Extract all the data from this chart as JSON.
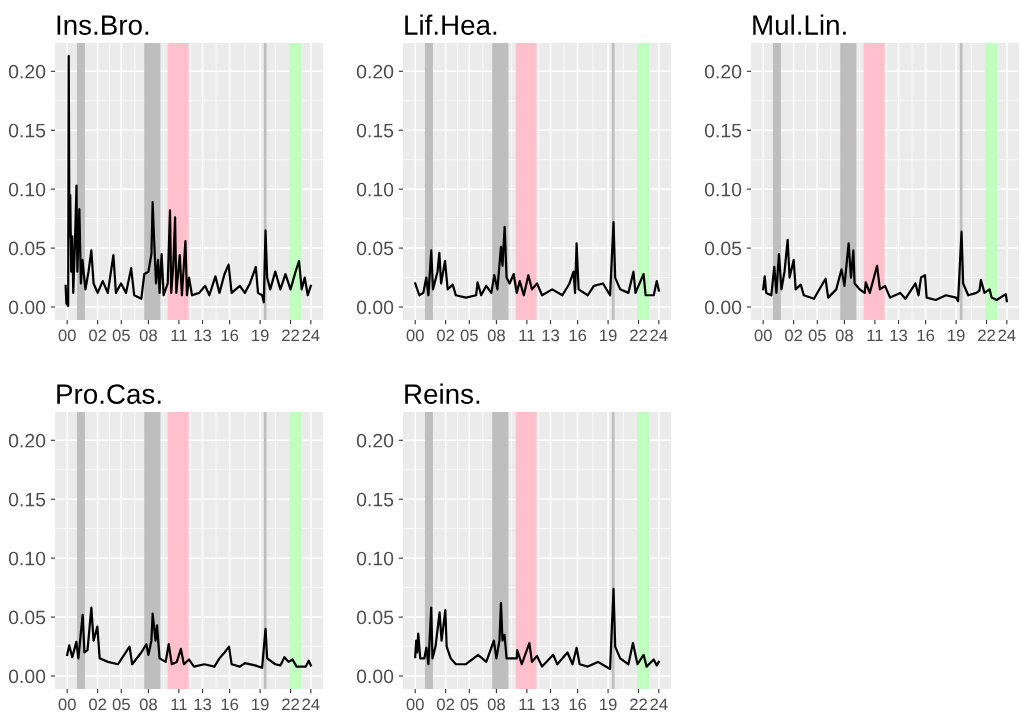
{
  "chart_data": [
    {
      "type": "line",
      "title": "Ins.Bro.",
      "grid": true,
      "xlim": [
        "1998-10-19",
        "2025-03-14"
      ],
      "ylim": [
        -0.011,
        0.224
      ],
      "xticks": [
        {
          "value": "2000-01-01",
          "label": "00"
        },
        {
          "value": "2002-12-31",
          "label": "02"
        },
        {
          "value": "2005-05-01",
          "label": "05"
        },
        {
          "value": "2008-01-01",
          "label": "08"
        },
        {
          "value": "2011-01-01",
          "label": "11"
        },
        {
          "value": "2013-05-01",
          "label": "13"
        },
        {
          "value": "2016-01-01",
          "label": "16"
        },
        {
          "value": "2019-01-01",
          "label": "19"
        },
        {
          "value": "2022-01-01",
          "label": "22"
        },
        {
          "value": "2024-01-01",
          "label": "24"
        }
      ],
      "yticks": [
        {
          "value": 0,
          "label": "0.00"
        },
        {
          "value": 0.05,
          "label": "0.05"
        },
        {
          "value": 0.1,
          "label": "0.10"
        },
        {
          "value": 0.15,
          "label": "0.15"
        },
        {
          "value": 0.2,
          "label": "0.20"
        }
      ],
      "bands": [
        {
          "axis": "x",
          "from": "2000-12-17",
          "to": "2001-10-01",
          "color": "#bebebe"
        },
        {
          "axis": "x",
          "from": "2007-08-04",
          "to": "2009-03-05",
          "color": "#bebebe"
        },
        {
          "axis": "x",
          "from": "2009-11-25",
          "to": "2011-12-13",
          "color": "#ffc0cb"
        },
        {
          "axis": "x",
          "from": "2019-05-15",
          "to": "2019-08-22",
          "color": "#bebebe"
        },
        {
          "axis": "x",
          "from": "2021-11-06",
          "to": "2023-01-15",
          "color": "#c1ffc1"
        }
      ],
      "series": [
        {
          "color": "#000000",
          "x": [
            "1999-11-06",
            "1999-12-02",
            "2000-02-05",
            "2000-02-24",
            "2000-03-21",
            "2000-04-19",
            "2000-05-25",
            "2000-07-01",
            "2000-08-06",
            "2000-10-01",
            "2000-12-01",
            "2001-01-01",
            "2001-03-14",
            "2001-05-08",
            "2001-07-02",
            "2001-10-19",
            "2002-02-06",
            "2002-05-19",
            "2002-08-07",
            "2003-01-01",
            "2003-07-02",
            "2004-01-01",
            "2004-07-20",
            "2004-10-19",
            "2005-04-20",
            "2005-10-19",
            "2006-04-20",
            "2006-08-07",
            "2007-04-20",
            "2007-08-07",
            "2008-01-01",
            "2008-04-19",
            "2008-06-01",
            "2008-07-19",
            "2008-10-01",
            "2008-12-13",
            "2009-02-06",
            "2009-04-20",
            "2009-07-02",
            "2009-11-25",
            "2010-02-16",
            "2010-04-01",
            "2010-06-13",
            "2010-08-18",
            "2010-10-01",
            "2011-02-02",
            "2011-04-20",
            "2011-08-25",
            "2011-10-19",
            "2012-01-01",
            "2012-04-19",
            "2013-01-01",
            "2013-08-07",
            "2014-01-01",
            "2014-08-07",
            "2015-01-01",
            "2015-07-02",
            "2015-11-25",
            "2016-03-13",
            "2017-01-01",
            "2017-07-02",
            "2018-01-01",
            "2018-07-31",
            "2018-10-19",
            "2019-03-14",
            "2019-05-15",
            "2019-07-16",
            "2019-09-13",
            "2020-01-01",
            "2020-07-01",
            "2021-01-01",
            "2021-07-02",
            "2022-01-01",
            "2022-07-02",
            "2022-11-03",
            "2023-02-06",
            "2023-05-27",
            "2023-09-13",
            "2024-01-01"
          ],
          "values": [
            0.018,
            0.003,
            0.001,
            0.213,
            0.06,
            0.095,
            0.03,
            0.06,
            0.012,
            0.05,
            0.103,
            0.03,
            0.083,
            0.02,
            0.04,
            0.015,
            0.03,
            0.048,
            0.02,
            0.012,
            0.022,
            0.012,
            0.044,
            0.012,
            0.02,
            0.012,
            0.033,
            0.01,
            0.007,
            0.028,
            0.03,
            0.045,
            0.089,
            0.06,
            0.02,
            0.04,
            0.012,
            0.045,
            0.01,
            0.02,
            0.082,
            0.012,
            0.035,
            0.076,
            0.012,
            0.044,
            0.01,
            0.056,
            0.01,
            0.025,
            0.01,
            0.012,
            0.018,
            0.01,
            0.026,
            0.012,
            0.028,
            0.036,
            0.012,
            0.018,
            0.012,
            0.02,
            0.034,
            0.012,
            0.01,
            0.004,
            0.065,
            0.025,
            0.015,
            0.03,
            0.015,
            0.028,
            0.015,
            0.03,
            0.039,
            0.015,
            0.025,
            0.01,
            0.018
          ]
        }
      ]
    },
    {
      "type": "line",
      "title": "Lif.Hea.",
      "grid": true,
      "xlim": [
        "1998-10-19",
        "2025-03-14"
      ],
      "ylim": [
        -0.011,
        0.224
      ],
      "xticks": [
        {
          "value": "2000-01-01",
          "label": "00"
        },
        {
          "value": "2002-12-31",
          "label": "02"
        },
        {
          "value": "2005-05-01",
          "label": "05"
        },
        {
          "value": "2008-01-01",
          "label": "08"
        },
        {
          "value": "2011-01-01",
          "label": "11"
        },
        {
          "value": "2013-05-01",
          "label": "13"
        },
        {
          "value": "2016-01-01",
          "label": "16"
        },
        {
          "value": "2019-01-01",
          "label": "19"
        },
        {
          "value": "2022-01-01",
          "label": "22"
        },
        {
          "value": "2024-01-01",
          "label": "24"
        }
      ],
      "yticks": [
        {
          "value": 0,
          "label": "0.00"
        },
        {
          "value": 0.05,
          "label": "0.05"
        },
        {
          "value": 0.1,
          "label": "0.10"
        },
        {
          "value": 0.15,
          "label": "0.15"
        },
        {
          "value": 0.2,
          "label": "0.20"
        }
      ],
      "bands": [
        {
          "axis": "x",
          "from": "2000-12-17",
          "to": "2001-10-01",
          "color": "#bebebe"
        },
        {
          "axis": "x",
          "from": "2007-08-04",
          "to": "2009-03-05",
          "color": "#bebebe"
        },
        {
          "axis": "x",
          "from": "2009-11-25",
          "to": "2011-12-13",
          "color": "#ffc0cb"
        },
        {
          "axis": "x",
          "from": "2019-05-15",
          "to": "2019-08-22",
          "color": "#bebebe"
        },
        {
          "axis": "x",
          "from": "2021-11-06",
          "to": "2023-01-15",
          "color": "#c1ffc1"
        }
      ],
      "series": [
        {
          "color": "#000000",
          "x": [
            "2000-01-01",
            "2000-05-26",
            "2000-10-19",
            "2001-02-03",
            "2001-04-20",
            "2001-07-31",
            "2001-10-01",
            "2002-03-14",
            "2002-05-19",
            "2002-07-20",
            "2002-12-09",
            "2003-03-14",
            "2003-09-13",
            "2004-01-01",
            "2005-01-01",
            "2006-01-01",
            "2006-02-21",
            "2006-07-02",
            "2007-01-01",
            "2007-07-02",
            "2007-10-16",
            "2008-02-06",
            "2008-06-13",
            "2008-08-07",
            "2008-10-23",
            "2009-01-01",
            "2009-04-20",
            "2009-09-13",
            "2010-01-01",
            "2010-04-20",
            "2010-09-13",
            "2011-02-24",
            "2011-07-02",
            "2012-01-01",
            "2012-07-01",
            "2013-07-02",
            "2014-07-02",
            "2015-03-14",
            "2015-08-07",
            "2015-10-01",
            "2015-11-25",
            "2016-02-06",
            "2017-01-01",
            "2017-08-07",
            "2018-07-02",
            "2019-03-14",
            "2019-07-16",
            "2019-09-13",
            "2020-03-13",
            "2021-01-01",
            "2021-07-02",
            "2021-09-13",
            "2022-07-02",
            "2022-09-13",
            "2023-07-02",
            "2023-10-19",
            "2024-01-01"
          ],
          "values": [
            0.02,
            0.01,
            0.012,
            0.025,
            0.01,
            0.048,
            0.015,
            0.03,
            0.046,
            0.02,
            0.039,
            0.015,
            0.019,
            0.01,
            0.008,
            0.01,
            0.021,
            0.01,
            0.018,
            0.012,
            0.027,
            0.015,
            0.051,
            0.035,
            0.068,
            0.025,
            0.02,
            0.028,
            0.012,
            0.022,
            0.01,
            0.027,
            0.015,
            0.02,
            0.01,
            0.015,
            0.01,
            0.02,
            0.03,
            0.012,
            0.054,
            0.015,
            0.01,
            0.018,
            0.02,
            0.01,
            0.072,
            0.025,
            0.015,
            0.012,
            0.03,
            0.012,
            0.028,
            0.01,
            0.01,
            0.022,
            0.014
          ]
        }
      ]
    },
    {
      "type": "line",
      "title": "Mul.Lin.",
      "grid": true,
      "xlim": [
        "1998-10-19",
        "2025-03-14"
      ],
      "ylim": [
        -0.011,
        0.224
      ],
      "xticks": [
        {
          "value": "2000-01-01",
          "label": "00"
        },
        {
          "value": "2002-12-31",
          "label": "02"
        },
        {
          "value": "2005-05-01",
          "label": "05"
        },
        {
          "value": "2008-01-01",
          "label": "08"
        },
        {
          "value": "2011-01-01",
          "label": "11"
        },
        {
          "value": "2013-05-01",
          "label": "13"
        },
        {
          "value": "2016-01-01",
          "label": "16"
        },
        {
          "value": "2019-01-01",
          "label": "19"
        },
        {
          "value": "2022-01-01",
          "label": "22"
        },
        {
          "value": "2024-01-01",
          "label": "24"
        }
      ],
      "yticks": [
        {
          "value": 0,
          "label": "0.00"
        },
        {
          "value": 0.05,
          "label": "0.05"
        },
        {
          "value": 0.1,
          "label": "0.10"
        },
        {
          "value": 0.15,
          "label": "0.15"
        },
        {
          "value": 0.2,
          "label": "0.20"
        }
      ],
      "bands": [
        {
          "axis": "x",
          "from": "2000-12-17",
          "to": "2001-10-01",
          "color": "#bebebe"
        },
        {
          "axis": "x",
          "from": "2007-08-04",
          "to": "2009-03-05",
          "color": "#bebebe"
        },
        {
          "axis": "x",
          "from": "2009-11-25",
          "to": "2011-12-13",
          "color": "#ffc0cb"
        },
        {
          "axis": "x",
          "from": "2019-05-15",
          "to": "2019-08-22",
          "color": "#bebebe"
        },
        {
          "axis": "x",
          "from": "2021-11-06",
          "to": "2023-01-15",
          "color": "#c1ffc1"
        }
      ],
      "series": [
        {
          "color": "#000000",
          "x": [
            "2000-01-01",
            "2000-02-24",
            "2000-04-19",
            "2000-10-19",
            "2001-02-03",
            "2001-04-20",
            "2001-07-20",
            "2001-10-19",
            "2002-02-06",
            "2002-05-30",
            "2002-08-07",
            "2003-01-01",
            "2003-03-14",
            "2003-09-13",
            "2004-01-01",
            "2005-01-01",
            "2006-02-21",
            "2006-05-27",
            "2007-03-14",
            "2007-09-20",
            "2008-01-01",
            "2008-06-01",
            "2008-08-25",
            "2008-11-18",
            "2009-01-01",
            "2009-07-02",
            "2010-01-01",
            "2010-02-06",
            "2010-07-02",
            "2011-03-22",
            "2011-07-02",
            "2012-01-01",
            "2012-07-01",
            "2013-07-02",
            "2014-01-01",
            "2015-01-01",
            "2015-04-20",
            "2015-07-20",
            "2015-12-09",
            "2016-02-06",
            "2017-01-01",
            "2018-01-01",
            "2019-01-01",
            "2019-03-14",
            "2019-07-16",
            "2019-09-13",
            "2020-03-13",
            "2021-01-01",
            "2021-04-20",
            "2021-06-13",
            "2021-10-19",
            "2022-04-20",
            "2022-07-02",
            "2023-01-01",
            "2023-11-25",
            "2024-01-01"
          ],
          "values": [
            0.015,
            0.026,
            0.012,
            0.01,
            0.034,
            0.012,
            0.045,
            0.015,
            0.03,
            0.057,
            0.025,
            0.04,
            0.015,
            0.019,
            0.01,
            0.007,
            0.024,
            0.008,
            0.015,
            0.032,
            0.018,
            0.054,
            0.025,
            0.048,
            0.02,
            0.015,
            0.012,
            0.021,
            0.012,
            0.035,
            0.015,
            0.018,
            0.008,
            0.012,
            0.007,
            0.02,
            0.01,
            0.025,
            0.027,
            0.008,
            0.006,
            0.01,
            0.008,
            0.005,
            0.064,
            0.02,
            0.01,
            0.012,
            0.014,
            0.023,
            0.012,
            0.015,
            0.008,
            0.006,
            0.011,
            0.005
          ]
        }
      ]
    },
    {
      "type": "line",
      "title": "Pro.Cas.",
      "grid": true,
      "xlim": [
        "1998-10-19",
        "2025-03-14"
      ],
      "ylim": [
        -0.011,
        0.224
      ],
      "xticks": [
        {
          "value": "2000-01-01",
          "label": "00"
        },
        {
          "value": "2002-12-31",
          "label": "02"
        },
        {
          "value": "2005-05-01",
          "label": "05"
        },
        {
          "value": "2008-01-01",
          "label": "08"
        },
        {
          "value": "2011-01-01",
          "label": "11"
        },
        {
          "value": "2013-05-01",
          "label": "13"
        },
        {
          "value": "2016-01-01",
          "label": "16"
        },
        {
          "value": "2019-01-01",
          "label": "19"
        },
        {
          "value": "2022-01-01",
          "label": "22"
        },
        {
          "value": "2024-01-01",
          "label": "24"
        }
      ],
      "yticks": [
        {
          "value": 0,
          "label": "0.00"
        },
        {
          "value": 0.05,
          "label": "0.05"
        },
        {
          "value": 0.1,
          "label": "0.10"
        },
        {
          "value": 0.15,
          "label": "0.15"
        },
        {
          "value": 0.2,
          "label": "0.20"
        }
      ],
      "bands": [
        {
          "axis": "x",
          "from": "2000-12-17",
          "to": "2001-10-01",
          "color": "#bebebe"
        },
        {
          "axis": "x",
          "from": "2007-08-04",
          "to": "2009-03-05",
          "color": "#bebebe"
        },
        {
          "axis": "x",
          "from": "2009-11-25",
          "to": "2011-12-13",
          "color": "#ffc0cb"
        },
        {
          "axis": "x",
          "from": "2019-05-15",
          "to": "2019-08-22",
          "color": "#bebebe"
        },
        {
          "axis": "x",
          "from": "2021-11-06",
          "to": "2023-01-15",
          "color": "#c1ffc1"
        }
      ],
      "series": [
        {
          "color": "#000000",
          "x": [
            "2000-01-01",
            "2000-03-13",
            "2000-07-01",
            "2000-11-25",
            "2001-02-06",
            "2001-07-09",
            "2001-09-13",
            "2002-01-01",
            "2002-05-19",
            "2002-08-07",
            "2002-12-20",
            "2003-03-14",
            "2004-01-01",
            "2005-01-01",
            "2006-02-21",
            "2006-05-27",
            "2007-04-20",
            "2007-10-19",
            "2008-01-01",
            "2008-04-19",
            "2008-06-01",
            "2008-09-13",
            "2008-11-06",
            "2009-02-06",
            "2009-09-13",
            "2010-01-01",
            "2010-04-20",
            "2010-10-19",
            "2011-03-14",
            "2011-07-02",
            "2012-01-01",
            "2012-07-01",
            "2013-07-02",
            "2014-07-02",
            "2015-01-01",
            "2015-07-02",
            "2015-12-09",
            "2016-03-13",
            "2017-01-01",
            "2017-07-02",
            "2018-07-02",
            "2019-03-14",
            "2019-07-16",
            "2019-09-13",
            "2020-07-01",
            "2021-01-01",
            "2021-05-27",
            "2021-10-19",
            "2022-03-14",
            "2022-08-07",
            "2023-07-02",
            "2023-10-19",
            "2024-01-01"
          ],
          "values": [
            0.018,
            0.026,
            0.016,
            0.029,
            0.015,
            0.052,
            0.02,
            0.022,
            0.058,
            0.03,
            0.042,
            0.015,
            0.012,
            0.01,
            0.025,
            0.01,
            0.02,
            0.027,
            0.018,
            0.03,
            0.053,
            0.03,
            0.043,
            0.015,
            0.012,
            0.027,
            0.01,
            0.012,
            0.023,
            0.01,
            0.014,
            0.008,
            0.01,
            0.008,
            0.015,
            0.02,
            0.025,
            0.01,
            0.008,
            0.011,
            0.009,
            0.007,
            0.04,
            0.015,
            0.01,
            0.009,
            0.016,
            0.012,
            0.014,
            0.008,
            0.008,
            0.013,
            0.009
          ]
        }
      ]
    },
    {
      "type": "line",
      "title": "Reins.",
      "grid": true,
      "xlim": [
        "1998-10-19",
        "2025-03-14"
      ],
      "ylim": [
        -0.011,
        0.224
      ],
      "xticks": [
        {
          "value": "2000-01-01",
          "label": "00"
        },
        {
          "value": "2002-12-31",
          "label": "02"
        },
        {
          "value": "2005-05-01",
          "label": "05"
        },
        {
          "value": "2008-01-01",
          "label": "08"
        },
        {
          "value": "2011-01-01",
          "label": "11"
        },
        {
          "value": "2013-05-01",
          "label": "13"
        },
        {
          "value": "2016-01-01",
          "label": "16"
        },
        {
          "value": "2019-01-01",
          "label": "19"
        },
        {
          "value": "2022-01-01",
          "label": "22"
        },
        {
          "value": "2024-01-01",
          "label": "24"
        }
      ],
      "yticks": [
        {
          "value": 0,
          "label": "0.00"
        },
        {
          "value": 0.05,
          "label": "0.05"
        },
        {
          "value": 0.1,
          "label": "0.10"
        },
        {
          "value": 0.15,
          "label": "0.15"
        },
        {
          "value": 0.2,
          "label": "0.20"
        }
      ],
      "bands": [
        {
          "axis": "x",
          "from": "2000-12-17",
          "to": "2001-10-01",
          "color": "#bebebe"
        },
        {
          "axis": "x",
          "from": "2007-08-04",
          "to": "2009-03-05",
          "color": "#bebebe"
        },
        {
          "axis": "x",
          "from": "2009-11-25",
          "to": "2011-12-13",
          "color": "#ffc0cb"
        },
        {
          "axis": "x",
          "from": "2019-05-15",
          "to": "2019-08-22",
          "color": "#bebebe"
        },
        {
          "axis": "x",
          "from": "2021-11-06",
          "to": "2023-01-15",
          "color": "#c1ffc1"
        }
      ],
      "series": [
        {
          "color": "#000000",
          "x": [
            "2000-01-01",
            "2000-02-06",
            "2000-03-13",
            "2000-04-19",
            "2000-07-01",
            "2000-11-25",
            "2001-02-06",
            "2001-04-20",
            "2001-07-31",
            "2001-09-13",
            "2002-01-01",
            "2002-05-27",
            "2002-08-07",
            "2002-12-20",
            "2003-02-06",
            "2003-07-02",
            "2004-01-01",
            "2005-01-01",
            "2006-03-14",
            "2007-01-01",
            "2007-10-01",
            "2008-01-01",
            "2008-04-19",
            "2008-06-13",
            "2008-08-07",
            "2008-10-19",
            "2009-01-01",
            "2010-01-01",
            "2010-01-19",
            "2010-07-02",
            "2011-04-02",
            "2011-07-02",
            "2012-01-01",
            "2012-07-01",
            "2013-08-07",
            "2014-01-01",
            "2015-01-01",
            "2015-07-02",
            "2015-11-25",
            "2016-03-13",
            "2017-01-01",
            "2018-01-01",
            "2019-03-14",
            "2019-07-16",
            "2019-09-13",
            "2020-03-13",
            "2021-01-01",
            "2021-06-13",
            "2021-11-25",
            "2022-07-02",
            "2022-10-19",
            "2023-07-02",
            "2023-10-19",
            "2024-01-01"
          ],
          "values": [
            0.016,
            0.03,
            0.02,
            0.036,
            0.015,
            0.015,
            0.024,
            0.01,
            0.058,
            0.015,
            0.025,
            0.054,
            0.03,
            0.056,
            0.025,
            0.015,
            0.01,
            0.01,
            0.018,
            0.012,
            0.03,
            0.015,
            0.03,
            0.062,
            0.03,
            0.035,
            0.015,
            0.015,
            0.022,
            0.01,
            0.028,
            0.012,
            0.017,
            0.008,
            0.018,
            0.01,
            0.02,
            0.01,
            0.024,
            0.01,
            0.008,
            0.012,
            0.006,
            0.074,
            0.025,
            0.015,
            0.01,
            0.028,
            0.01,
            0.018,
            0.008,
            0.014,
            0.009,
            0.012
          ]
        }
      ]
    }
  ]
}
